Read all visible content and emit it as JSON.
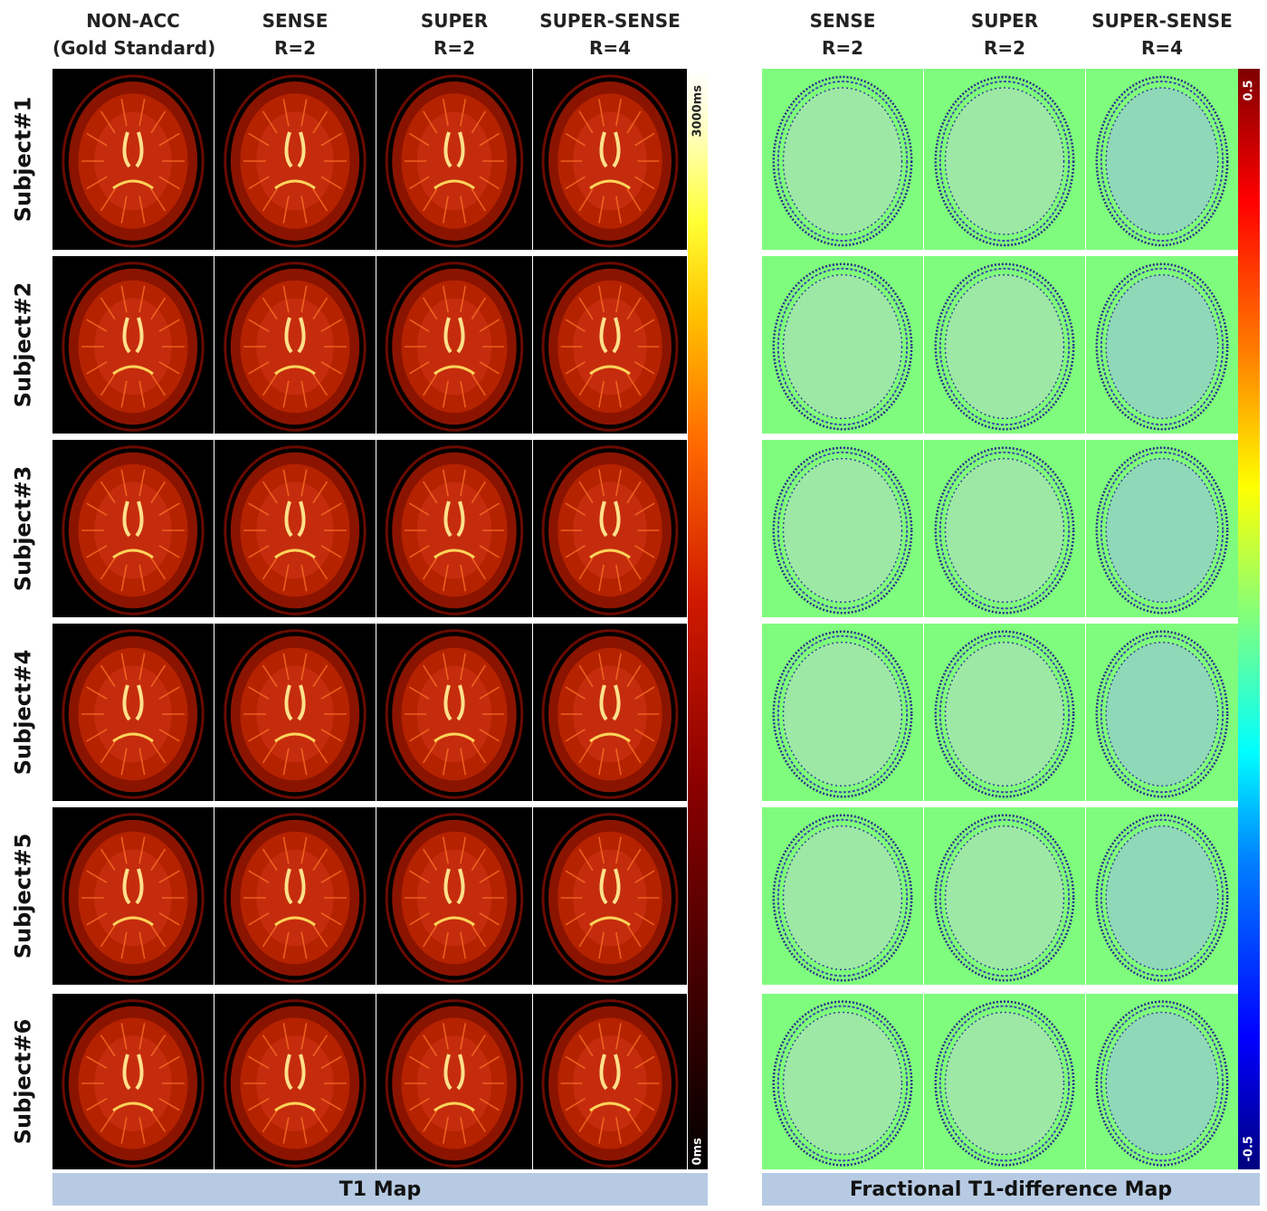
{
  "t1_columns": [
    {
      "line1": "NON-ACC",
      "line2": "(Gold Standard)"
    },
    {
      "line1": "SENSE",
      "line2": "R=2"
    },
    {
      "line1": "SUPER",
      "line2": "R=2"
    },
    {
      "line1": "SUPER-SENSE",
      "line2": "R=4"
    }
  ],
  "diff_columns": [
    {
      "line1": "SENSE",
      "line2": "R=2"
    },
    {
      "line1": "SUPER",
      "line2": "R=2"
    },
    {
      "line1": "SUPER-SENSE",
      "line2": "R=4"
    }
  ],
  "rows": [
    "Subject#1",
    "Subject#2",
    "Subject#3",
    "Subject#4",
    "Subject#5",
    "Subject#6"
  ],
  "t1_colorbar": {
    "max_label": "3000ms",
    "min_label": "0ms"
  },
  "diff_colorbar": {
    "max_label": "0.5",
    "min_label": "-0.5"
  },
  "footers": {
    "left": "T1 Map",
    "right": "Fractional T1-difference Map"
  },
  "colors": {
    "t1_background": "#000000",
    "diff_background": "#7ffc7d",
    "footer": "#b6cbe3"
  }
}
